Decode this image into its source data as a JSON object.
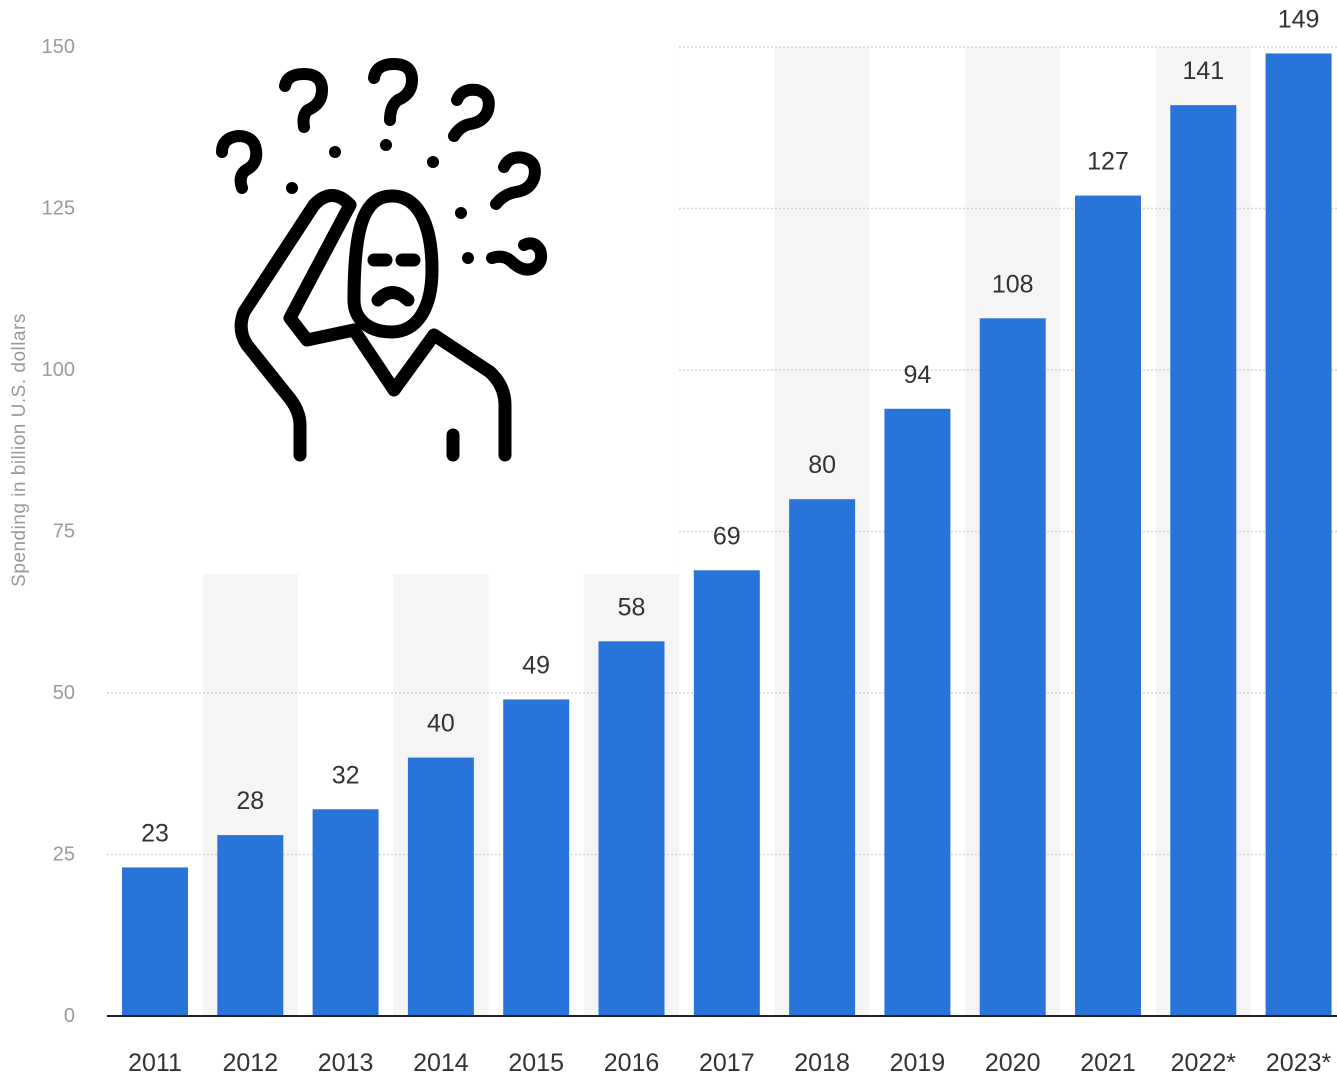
{
  "chart_data": {
    "type": "bar",
    "categories": [
      "2011",
      "2012",
      "2013",
      "2014",
      "2015",
      "2016",
      "2017",
      "2018",
      "2019",
      "2020",
      "2021",
      "2022*",
      "2023*"
    ],
    "values": [
      23,
      28,
      32,
      40,
      49,
      58,
      69,
      80,
      94,
      108,
      127,
      141,
      149
    ],
    "ylabel": "Spending in billion U.S. dollars",
    "xlabel": "",
    "ylim": [
      0,
      150
    ],
    "yticks": [
      0,
      25,
      50,
      75,
      100,
      125,
      150
    ],
    "grid": true,
    "bar_color": "#2874d9",
    "data_labels": true
  },
  "overlay": {
    "icon": "confused-person-with-question-marks-icon"
  },
  "colors": {
    "bar": "#2874d9",
    "grid": "#d6d6d6",
    "axis_text": "#9a9a9a",
    "label_text": "#333333",
    "column_band": "#f5f5f5"
  }
}
